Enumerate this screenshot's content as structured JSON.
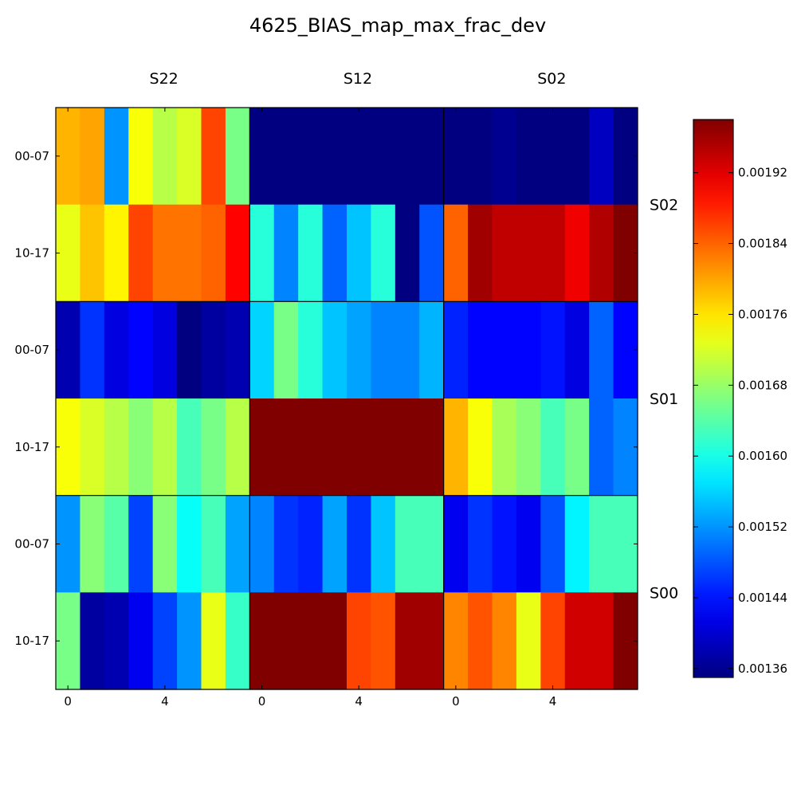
{
  "chart_data": {
    "type": "heatmap",
    "title": "4625_BIAS_map_max_frac_dev",
    "column_groups": [
      "S22",
      "S12",
      "S02"
    ],
    "row_groups": [
      "S02",
      "S01",
      "S00"
    ],
    "row_ticks": [
      "00-07",
      "10-17"
    ],
    "x_ticks": [
      "0",
      "4"
    ],
    "x_tick_values": [
      0,
      4
    ],
    "colorbar": {
      "min": 0.00135,
      "max": 0.00198,
      "ticks": [
        "0.00136",
        "0.00144",
        "0.00152",
        "0.00160",
        "0.00168",
        "0.00176",
        "0.00184",
        "0.00192"
      ],
      "tick_values": [
        0.00136,
        0.00144,
        0.00152,
        0.0016,
        0.00168,
        0.00176,
        0.00184,
        0.00192
      ],
      "colormap": "jet"
    },
    "cells": [
      {
        "row_group": "S02",
        "row": "00-07",
        "col_group": "S22",
        "values": [
          0.00179,
          0.0018,
          0.00152,
          0.00174,
          0.0017,
          0.00172,
          0.00186,
          0.00166
        ]
      },
      {
        "row_group": "S02",
        "row": "10-17",
        "col_group": "S22",
        "values": [
          0.00173,
          0.00178,
          0.00175,
          0.00186,
          0.00183,
          0.00183,
          0.00184,
          0.0019
        ]
      },
      {
        "row_group": "S02",
        "row": "00-07",
        "col_group": "S12",
        "values": [
          0.00135,
          0.00135,
          0.00135,
          0.00135,
          0.00135,
          0.00135,
          0.00135,
          0.00135
        ]
      },
      {
        "row_group": "S02",
        "row": "10-17",
        "col_group": "S12",
        "values": [
          0.00161,
          0.00151,
          0.00161,
          0.00149,
          0.00155,
          0.00161,
          0.00135,
          0.00148
        ]
      },
      {
        "row_group": "S02",
        "row": "00-07",
        "col_group": "S02",
        "values": [
          0.00135,
          0.00135,
          0.00136,
          0.00135,
          0.00135,
          0.00135,
          0.00139,
          0.00135
        ]
      },
      {
        "row_group": "S02",
        "row": "10-17",
        "col_group": "S02",
        "values": [
          0.00184,
          0.00196,
          0.00194,
          0.00194,
          0.00194,
          0.00191,
          0.00195,
          0.00198
        ]
      },
      {
        "row_group": "S01",
        "row": "00-07",
        "col_group": "S22",
        "values": [
          0.00138,
          0.00146,
          0.00141,
          0.00143,
          0.00141,
          0.00135,
          0.00137,
          0.00138
        ]
      },
      {
        "row_group": "S01",
        "row": "10-17",
        "col_group": "S22",
        "values": [
          0.00174,
          0.00172,
          0.0017,
          0.00167,
          0.0017,
          0.00163,
          0.00166,
          0.0017
        ]
      },
      {
        "row_group": "S01",
        "row": "00-07",
        "col_group": "S12",
        "values": [
          0.00156,
          0.00166,
          0.00161,
          0.00155,
          0.00153,
          0.00151,
          0.00151,
          0.00154
        ]
      },
      {
        "row_group": "S01",
        "row": "10-17",
        "col_group": "S12",
        "values": [
          0.00198,
          0.00198,
          0.00198,
          0.00198,
          0.00198,
          0.00198,
          0.00198,
          0.00198
        ]
      },
      {
        "row_group": "S01",
        "row": "00-07",
        "col_group": "S02",
        "values": [
          0.00145,
          0.00143,
          0.00143,
          0.00143,
          0.00144,
          0.00141,
          0.00149,
          0.00143
        ]
      },
      {
        "row_group": "S01",
        "row": "10-17",
        "col_group": "S02",
        "values": [
          0.00179,
          0.00174,
          0.00169,
          0.00167,
          0.00163,
          0.00166,
          0.00149,
          0.00151
        ]
      },
      {
        "row_group": "S00",
        "row": "00-07",
        "col_group": "S22",
        "values": [
          0.00152,
          0.00167,
          0.00164,
          0.00147,
          0.00167,
          0.00159,
          0.00163,
          0.00153
        ]
      },
      {
        "row_group": "S00",
        "row": "10-17",
        "col_group": "S22",
        "values": [
          0.00166,
          0.00137,
          0.00138,
          0.00142,
          0.00147,
          0.00152,
          0.00173,
          0.00162
        ]
      },
      {
        "row_group": "S00",
        "row": "00-07",
        "col_group": "S12",
        "values": [
          0.00151,
          0.00146,
          0.00145,
          0.00153,
          0.00146,
          0.00155,
          0.00163,
          0.00163
        ]
      },
      {
        "row_group": "S00",
        "row": "10-17",
        "col_group": "S12",
        "values": [
          0.00198,
          0.00198,
          0.00198,
          0.00198,
          0.00186,
          0.00185,
          0.00196,
          0.00196
        ]
      },
      {
        "row_group": "S00",
        "row": "00-07",
        "col_group": "S02",
        "values": [
          0.00142,
          0.00146,
          0.00144,
          0.00142,
          0.00148,
          0.00158,
          0.00163,
          0.00163
        ]
      },
      {
        "row_group": "S00",
        "row": "10-17",
        "col_group": "S02",
        "values": [
          0.00182,
          0.00185,
          0.00182,
          0.00173,
          0.00186,
          0.00193,
          0.00193,
          0.00198
        ]
      }
    ]
  }
}
